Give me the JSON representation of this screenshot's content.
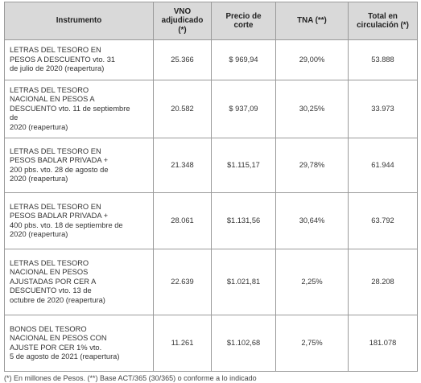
{
  "table": {
    "header": [
      "Instrumento",
      "VNO\nadjudicado\n(*)",
      "Precio de\ncorte",
      "TNA (**)",
      "Total en\ncirculación (*)"
    ],
    "rows": [
      [
        "LETRAS DEL TESORO EN\nPESOS A DESCUENTO vto. 31\nde julio de 2020 (reapertura)",
        "25.366",
        "$ 969,94",
        "29,00%",
        "53.888"
      ],
      [
        "LETRAS DEL TESORO\nNACIONAL EN PESOS A\nDESCUENTO vto. 11 de septiembre\nde\n2020 (reapertura)",
        "20.582",
        "$ 937,09",
        "30,25%",
        "33.973"
      ],
      [
        "LETRAS DEL TESORO EN\nPESOS BADLAR PRIVADA +\n200 pbs. vto. 28 de agosto de\n2020 (reapertura)",
        "21.348",
        "$1.115,17",
        "29,78%",
        "61.944"
      ],
      [
        "LETRAS DEL TESORO EN\nPESOS BADLAR PRIVADA +\n400 pbs. vto. 18 de septiembre de\n2020 (reapertura)",
        "28.061",
        "$1.131,56",
        "30,64%",
        "63.792"
      ],
      [
        "LETRAS DEL TESORO\nNACIONAL EN PESOS\nAJUSTADAS POR CER A\nDESCUENTO vto. 13 de\noctubre de 2020 (reapertura)",
        "22.639",
        "$1.021,81",
        "2,25%",
        "28.208"
      ],
      [
        "BONOS DEL TESORO\nNACIONAL EN PESOS CON\nAJUSTE POR CER  1% vto.\n5 de agosto de 2021 (reapertura)",
        "11.261",
        "$1.102,68",
        "2,75%",
        "181.078"
      ]
    ],
    "footnote": "(*) En millones de Pesos. (**) Base ACT/365 (30/365) o conforme a lo indicado"
  }
}
